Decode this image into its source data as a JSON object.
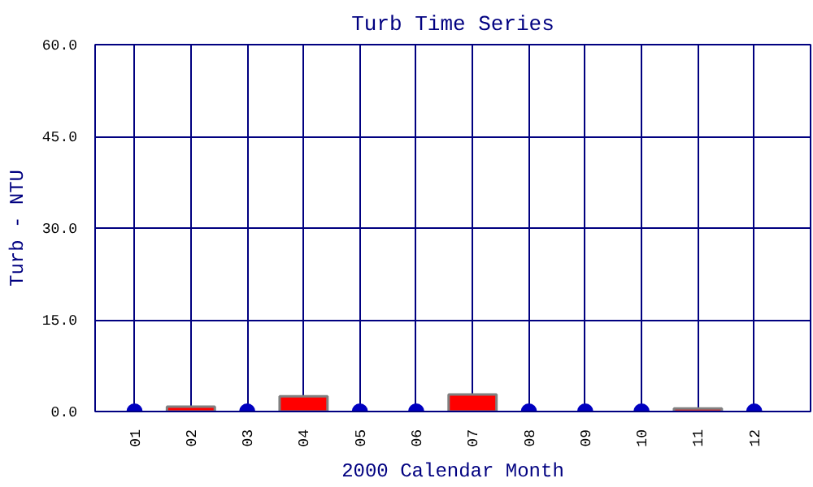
{
  "chart_data": {
    "type": "bar",
    "title": "Turb Time Series",
    "xlabel": "2000 Calendar Month",
    "ylabel": "Turb - NTU",
    "categories": [
      "01",
      "02",
      "03",
      "04",
      "05",
      "06",
      "07",
      "08",
      "09",
      "10",
      "11",
      "12"
    ],
    "series": [
      {
        "color": "#ff0000",
        "values": [
          null,
          0.8,
          null,
          2.5,
          null,
          null,
          2.8,
          null,
          null,
          null,
          0.5,
          null
        ]
      },
      {
        "type": "scatter",
        "color": "#0000c0",
        "x": [
          "01",
          "03",
          "05",
          "06",
          "08",
          "09",
          "10",
          "12"
        ],
        "values": [
          0,
          0,
          0,
          0,
          0,
          0,
          0,
          0
        ]
      }
    ],
    "ylim": [
      0,
      60
    ],
    "yticks": [
      {
        "value": 0,
        "label": "0.0"
      },
      {
        "value": 15,
        "label": "15.0"
      },
      {
        "value": 30,
        "label": "30.0"
      },
      {
        "value": 45,
        "label": "45.0"
      },
      {
        "value": 60,
        "label": "60.0"
      }
    ],
    "grid": true,
    "marker": "circle"
  }
}
